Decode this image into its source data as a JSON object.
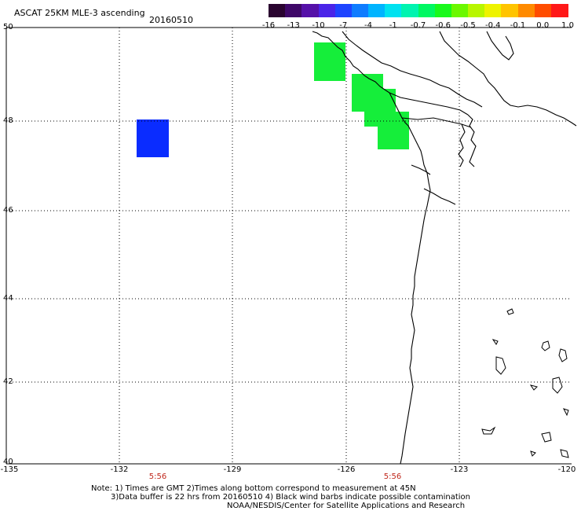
{
  "header": {
    "title": "ASCAT 25KM MLE-3 ascending",
    "date": "20160510"
  },
  "colorbar": {
    "colors": [
      "#2a0430",
      "#3f0868",
      "#5511a8",
      "#4a24e8",
      "#1e44ff",
      "#0f7cff",
      "#00b4ff",
      "#00e2f0",
      "#00f4b0",
      "#00f862",
      "#19f91c",
      "#6bf800",
      "#b8f600",
      "#eef300",
      "#ffc400",
      "#ff8a00",
      "#ff4c00",
      "#ff1818"
    ],
    "ticks": [
      "-16",
      "-13",
      "-10",
      "-7",
      "-4",
      "-1",
      "-0.7",
      "-0.6",
      "-0.5",
      "-0.4",
      "-0.1",
      "0.0",
      "1.0"
    ]
  },
  "map": {
    "lat_labels": [
      "50",
      "48",
      "46",
      "44",
      "42",
      "40"
    ],
    "lon_labels": [
      "-135",
      "-132",
      "-129",
      "-126",
      "-123",
      "-120"
    ],
    "time_labels": [
      "5:56",
      "5:56"
    ],
    "lat_range": [
      40,
      50
    ],
    "lon_range": [
      -135,
      -120
    ],
    "data_cells": [
      {
        "color": "#0a2cff"
      },
      {
        "color": "#15ee3a"
      },
      {
        "color": "#15ee3a"
      },
      {
        "color": "#15ee3a"
      },
      {
        "color": "#15ee3a"
      }
    ]
  },
  "notes": {
    "line1": "Note: 1) Times are GMT 2)Times along bottom correspond to measurement at 45N",
    "line2": "3)Data buffer is 22 hrs from 20160510 4) Black wind barbs indicate possible contamination",
    "line3": "NOAA/NESDIS/Center for Satellite Applications and Research"
  }
}
